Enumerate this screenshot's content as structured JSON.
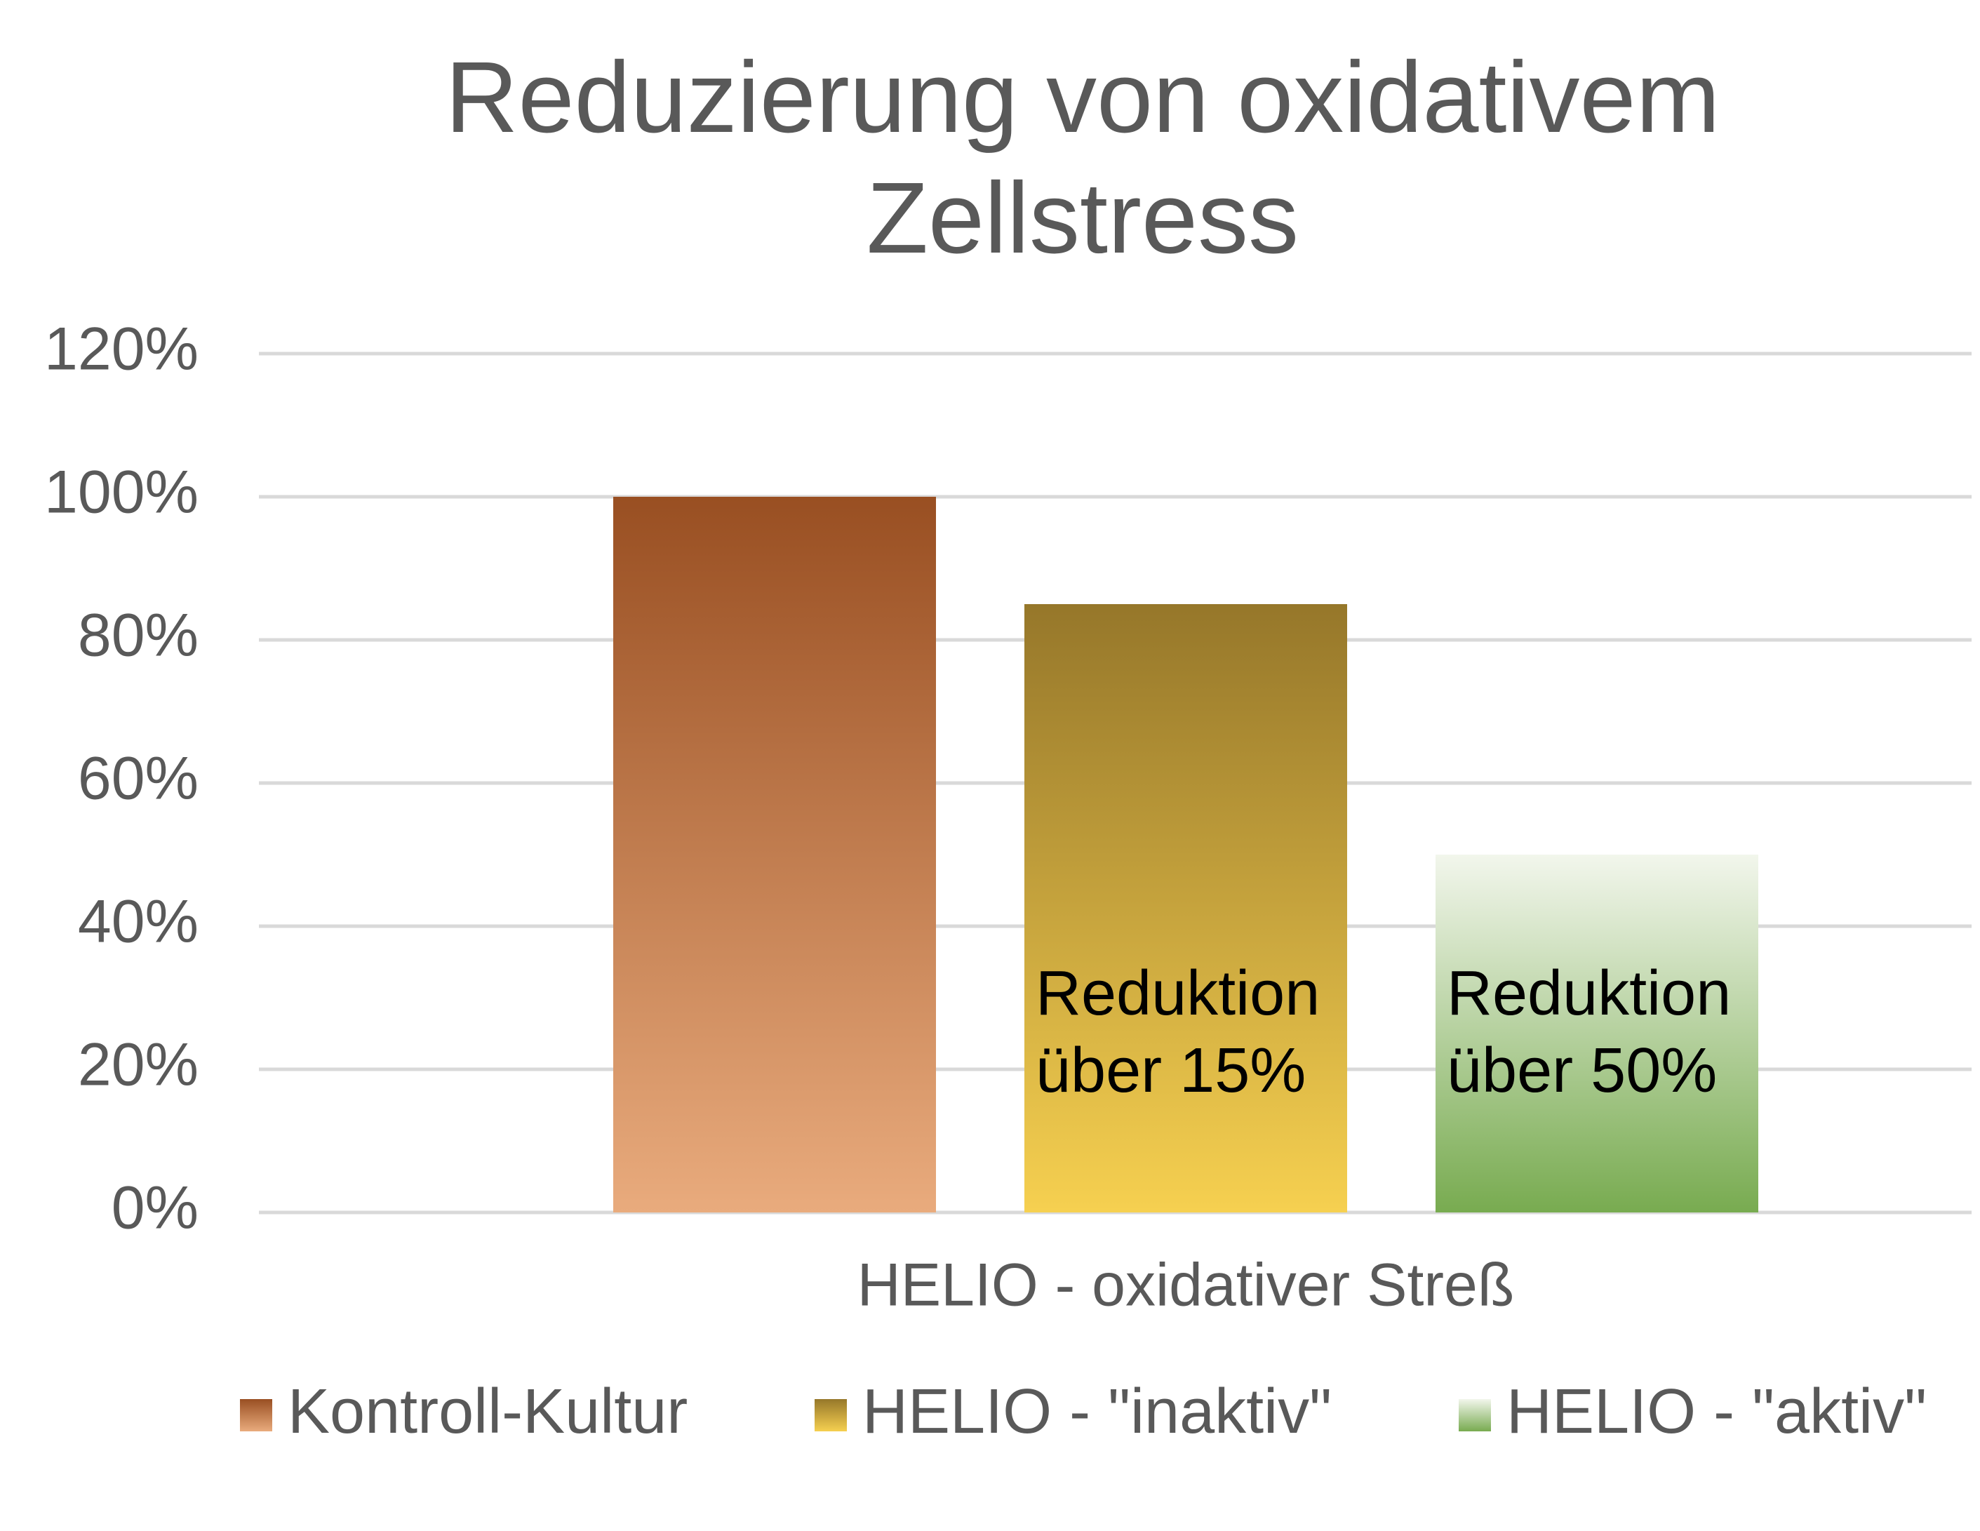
{
  "chart_data": {
    "type": "bar",
    "title_lines": [
      "Reduzierung von oxidativem",
      "Zellstress"
    ],
    "categories": [
      "HELIO - oxidativer Streß"
    ],
    "series": [
      {
        "name": "Kontroll-Kultur",
        "gradient": [
          "#994f22",
          "#e9ab7d"
        ],
        "values": [
          100
        ]
      },
      {
        "name": "HELIO - \"inaktiv\"",
        "gradient": [
          "#96772a",
          "#f6d050"
        ],
        "values": [
          85
        ]
      },
      {
        "name": "HELIO - \"aktiv\"",
        "gradient": [
          "#f2f6ec",
          "#78ab50"
        ],
        "values": [
          50
        ]
      }
    ],
    "annotations": [
      {
        "series": 1,
        "lines": [
          "Reduktion",
          "über 15%"
        ]
      },
      {
        "series": 2,
        "lines": [
          "Reduktion",
          "über 50%"
        ]
      }
    ],
    "ylim": [
      0,
      120
    ],
    "yticks": [
      {
        "value": 0,
        "label": "0%"
      },
      {
        "value": 20,
        "label": "20%"
      },
      {
        "value": 40,
        "label": "40%"
      },
      {
        "value": 60,
        "label": "60%"
      },
      {
        "value": 80,
        "label": "80%"
      },
      {
        "value": 100,
        "label": "100%"
      },
      {
        "value": 120,
        "label": "120%"
      }
    ],
    "grid": true,
    "legend": "bottom"
  }
}
